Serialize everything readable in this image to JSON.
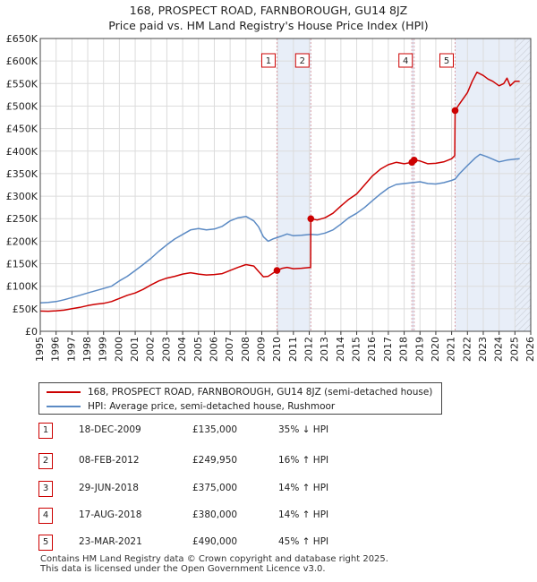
{
  "title_line1": "168, PROSPECT ROAD, FARNBOROUGH, GU14 8JZ",
  "title_line2": "Price paid vs. HM Land Registry's House Price Index (HPI)",
  "colors": {
    "property": "#cc0000",
    "hpi": "#5b8ac4",
    "shade": "#e8eef8",
    "marker_line": "#d9a0a8"
  },
  "chart_data": {
    "type": "line",
    "title": "Price paid vs. HM Land Registry's House Price Index (HPI)",
    "xlabel": "",
    "ylabel": "",
    "xlim": [
      1995,
      2026
    ],
    "ylim": [
      0,
      650000
    ],
    "y_ticks": [
      {
        "value": 0,
        "label": "£0"
      },
      {
        "value": 50000,
        "label": "£50K"
      },
      {
        "value": 100000,
        "label": "£100K"
      },
      {
        "value": 150000,
        "label": "£150K"
      },
      {
        "value": 200000,
        "label": "£200K"
      },
      {
        "value": 250000,
        "label": "£250K"
      },
      {
        "value": 300000,
        "label": "£300K"
      },
      {
        "value": 350000,
        "label": "£350K"
      },
      {
        "value": 400000,
        "label": "£400K"
      },
      {
        "value": 450000,
        "label": "£450K"
      },
      {
        "value": 500000,
        "label": "£500K"
      },
      {
        "value": 550000,
        "label": "£550K"
      },
      {
        "value": 600000,
        "label": "£600K"
      },
      {
        "value": 650000,
        "label": "£650K"
      }
    ],
    "x_ticks": [
      "1995",
      "1996",
      "1997",
      "1998",
      "1999",
      "2000",
      "2001",
      "2002",
      "2003",
      "2004",
      "2005",
      "2006",
      "2007",
      "2008",
      "2009",
      "2010",
      "2011",
      "2012",
      "2013",
      "2014",
      "2015",
      "2016",
      "2017",
      "2018",
      "2019",
      "2020",
      "2021",
      "2022",
      "2023",
      "2024",
      "2025",
      "2026"
    ],
    "grid": true,
    "legend_position": "below",
    "shaded_spans": [
      {
        "from": 2009.96,
        "to": 2012.1
      },
      {
        "from": 2018.49,
        "to": 2018.63
      },
      {
        "from": 2021.22,
        "to": 2026.0
      }
    ],
    "hatched_span": {
      "from": 2025.0,
      "to": 2026.0
    },
    "series": [
      {
        "name": "168, PROSPECT ROAD, FARNBOROUGH, GU14 8JZ (semi-detached house)",
        "color": "#cc0000",
        "points": [
          [
            1995.0,
            45000
          ],
          [
            1995.5,
            44500
          ],
          [
            1996.0,
            45500
          ],
          [
            1996.5,
            47000
          ],
          [
            1997.0,
            50000
          ],
          [
            1997.5,
            53000
          ],
          [
            1998.0,
            57000
          ],
          [
            1998.5,
            60000
          ],
          [
            1999.0,
            62000
          ],
          [
            1999.5,
            66000
          ],
          [
            2000.0,
            73000
          ],
          [
            2000.5,
            80000
          ],
          [
            2001.0,
            85000
          ],
          [
            2001.5,
            93000
          ],
          [
            2002.0,
            103000
          ],
          [
            2002.5,
            112000
          ],
          [
            2003.0,
            118000
          ],
          [
            2003.5,
            122000
          ],
          [
            2004.0,
            127000
          ],
          [
            2004.5,
            130000
          ],
          [
            2005.0,
            127000
          ],
          [
            2005.5,
            125000
          ],
          [
            2006.0,
            126000
          ],
          [
            2006.5,
            128000
          ],
          [
            2007.0,
            135000
          ],
          [
            2007.5,
            142000
          ],
          [
            2008.0,
            148000
          ],
          [
            2008.5,
            145000
          ],
          [
            2008.8,
            133000
          ],
          [
            2009.1,
            121000
          ],
          [
            2009.4,
            122000
          ],
          [
            2009.7,
            129000
          ],
          [
            2009.96,
            135000
          ],
          [
            2010.3,
            140000
          ],
          [
            2010.6,
            142000
          ],
          [
            2011.0,
            139000
          ],
          [
            2011.5,
            140000
          ],
          [
            2012.09,
            142000
          ],
          [
            2012.1,
            249950
          ],
          [
            2012.5,
            247000
          ],
          [
            2013.0,
            252000
          ],
          [
            2013.5,
            262000
          ],
          [
            2014.0,
            278000
          ],
          [
            2014.5,
            293000
          ],
          [
            2015.0,
            305000
          ],
          [
            2015.5,
            325000
          ],
          [
            2016.0,
            345000
          ],
          [
            2016.5,
            360000
          ],
          [
            2017.0,
            370000
          ],
          [
            2017.5,
            375000
          ],
          [
            2018.0,
            372000
          ],
          [
            2018.49,
            375000
          ],
          [
            2018.63,
            380000
          ],
          [
            2019.0,
            378000
          ],
          [
            2019.5,
            372000
          ],
          [
            2020.0,
            373000
          ],
          [
            2020.5,
            376000
          ],
          [
            2021.0,
            383000
          ],
          [
            2021.2,
            390000
          ],
          [
            2021.22,
            490000
          ],
          [
            2021.5,
            505000
          ],
          [
            2022.0,
            530000
          ],
          [
            2022.3,
            555000
          ],
          [
            2022.6,
            575000
          ],
          [
            2023.0,
            568000
          ],
          [
            2023.3,
            560000
          ],
          [
            2023.6,
            555000
          ],
          [
            2024.0,
            545000
          ],
          [
            2024.3,
            550000
          ],
          [
            2024.5,
            562000
          ],
          [
            2024.7,
            545000
          ],
          [
            2025.0,
            555000
          ],
          [
            2025.3,
            555000
          ]
        ]
      },
      {
        "name": "HPI: Average price, semi-detached house, Rushmoor",
        "color": "#5b8ac4",
        "points": [
          [
            1995.0,
            63000
          ],
          [
            1995.5,
            64000
          ],
          [
            1996.0,
            66000
          ],
          [
            1996.5,
            70000
          ],
          [
            1997.0,
            75000
          ],
          [
            1997.5,
            80000
          ],
          [
            1998.0,
            85000
          ],
          [
            1998.5,
            90000
          ],
          [
            1999.0,
            95000
          ],
          [
            1999.5,
            100000
          ],
          [
            2000.0,
            112000
          ],
          [
            2000.5,
            122000
          ],
          [
            2001.0,
            135000
          ],
          [
            2001.5,
            148000
          ],
          [
            2002.0,
            162000
          ],
          [
            2002.5,
            178000
          ],
          [
            2003.0,
            192000
          ],
          [
            2003.5,
            205000
          ],
          [
            2004.0,
            215000
          ],
          [
            2004.5,
            225000
          ],
          [
            2005.0,
            228000
          ],
          [
            2005.5,
            225000
          ],
          [
            2006.0,
            227000
          ],
          [
            2006.5,
            233000
          ],
          [
            2007.0,
            245000
          ],
          [
            2007.5,
            252000
          ],
          [
            2008.0,
            255000
          ],
          [
            2008.5,
            245000
          ],
          [
            2008.8,
            232000
          ],
          [
            2009.1,
            210000
          ],
          [
            2009.4,
            200000
          ],
          [
            2009.7,
            205000
          ],
          [
            2009.96,
            208000
          ],
          [
            2010.3,
            212000
          ],
          [
            2010.6,
            216000
          ],
          [
            2011.0,
            212000
          ],
          [
            2011.5,
            213000
          ],
          [
            2012.1,
            215000
          ],
          [
            2012.5,
            214000
          ],
          [
            2013.0,
            218000
          ],
          [
            2013.5,
            225000
          ],
          [
            2014.0,
            238000
          ],
          [
            2014.5,
            252000
          ],
          [
            2015.0,
            262000
          ],
          [
            2015.5,
            275000
          ],
          [
            2016.0,
            290000
          ],
          [
            2016.5,
            305000
          ],
          [
            2017.0,
            318000
          ],
          [
            2017.5,
            326000
          ],
          [
            2018.0,
            328000
          ],
          [
            2018.5,
            330000
          ],
          [
            2019.0,
            332000
          ],
          [
            2019.5,
            328000
          ],
          [
            2020.0,
            327000
          ],
          [
            2020.5,
            330000
          ],
          [
            2021.0,
            335000
          ],
          [
            2021.22,
            338000
          ],
          [
            2021.5,
            350000
          ],
          [
            2022.0,
            368000
          ],
          [
            2022.5,
            385000
          ],
          [
            2022.8,
            393000
          ],
          [
            2023.2,
            388000
          ],
          [
            2023.6,
            382000
          ],
          [
            2024.0,
            376000
          ],
          [
            2024.5,
            380000
          ],
          [
            2025.0,
            382000
          ],
          [
            2025.3,
            383000
          ]
        ]
      }
    ],
    "sales": [
      {
        "marker": "1",
        "x": 2009.96,
        "y": 135000,
        "date": "18-DEC-2009",
        "price": "£135,000",
        "hpi": "35% ↓ HPI"
      },
      {
        "marker": "2",
        "x": 2012.1,
        "y": 249950,
        "date": "08-FEB-2012",
        "price": "£249,950",
        "hpi": "16% ↑ HPI"
      },
      {
        "marker": "3",
        "x": 2018.49,
        "y": 375000,
        "date": "29-JUN-2018",
        "price": "£375,000",
        "hpi": "14% ↑ HPI"
      },
      {
        "marker": "4",
        "x": 2018.63,
        "y": 380000,
        "date": "17-AUG-2018",
        "price": "£380,000",
        "hpi": "14% ↑ HPI"
      },
      {
        "marker": "5",
        "x": 2021.22,
        "y": 490000,
        "date": "23-MAR-2021",
        "price": "£490,000",
        "hpi": "45% ↑ HPI"
      }
    ],
    "chart_markers": [
      "1",
      "2",
      "4",
      "5"
    ]
  },
  "legend": {
    "property": "168, PROSPECT ROAD, FARNBOROUGH, GU14 8JZ (semi-detached house)",
    "hpi": "HPI: Average price, semi-detached house, Rushmoor"
  },
  "footer_line1": "Contains HM Land Registry data © Crown copyright and database right 2025.",
  "footer_line2": "This data is licensed under the Open Government Licence v3.0."
}
